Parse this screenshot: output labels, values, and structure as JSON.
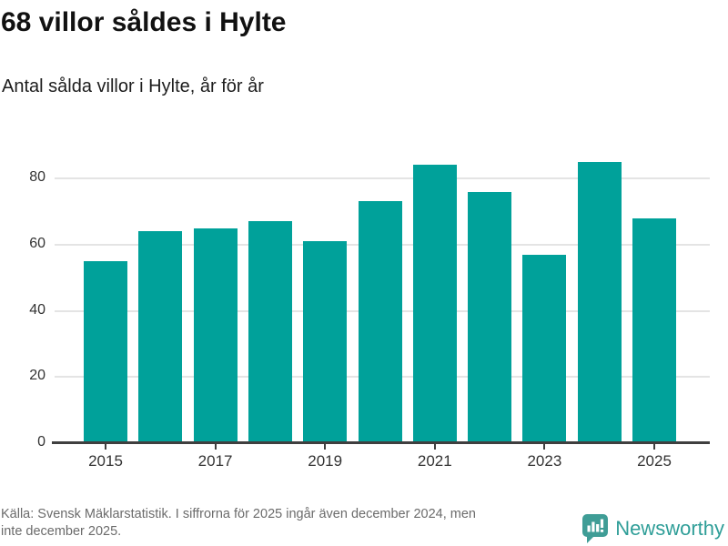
{
  "chart_data": {
    "type": "bar",
    "title": "68 villor såldes i Hylte",
    "subtitle": "Antal sålda villor i Hylte, år för år",
    "categories": [
      "2015",
      "2016",
      "2017",
      "2018",
      "2019",
      "2020",
      "2021",
      "2022",
      "2023",
      "2024",
      "2025"
    ],
    "values": [
      55,
      64,
      65,
      67,
      61,
      73,
      84,
      76,
      57,
      85,
      68
    ],
    "xlabel": "",
    "ylabel": "",
    "ylim": [
      0,
      90
    ],
    "yticks": [
      0,
      20,
      40,
      60,
      80
    ],
    "xtick_labels": [
      "2015",
      "2017",
      "2019",
      "2021",
      "2023",
      "2025"
    ],
    "grid": "horizontal",
    "legend": "none",
    "bar_color": "#00a19a"
  },
  "footer": {
    "source_line1": "Källa: Svensk Mäklarstatistik. I siffrorna för 2025 ingår även december 2024, men",
    "source_line2": "inte december 2025.",
    "brand": "Newsworthy",
    "brand_color": "#2f9e98",
    "brand_icon": "newsworthy-speech-bubble-bar-chart-icon",
    "brand_icon_color": "#3f9d96"
  },
  "colors": {
    "background": "#ffffff",
    "title_text": "#111111",
    "subtitle_text": "#1d1d1d",
    "axis_labels": "#333333",
    "gridline": "#e4e4e4",
    "axis_line": "#3f3f3f",
    "source_text": "#6b6b6b"
  }
}
